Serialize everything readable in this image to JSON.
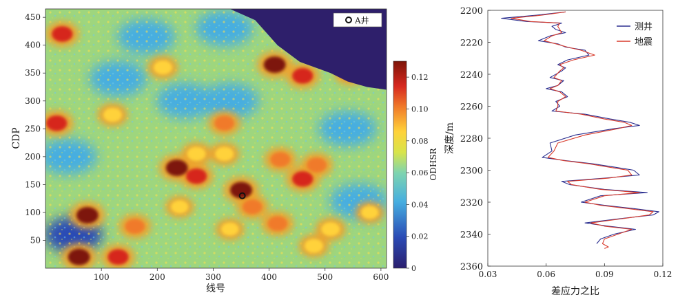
{
  "chart_data": [
    {
      "type": "heatmap",
      "title": "",
      "xlabel": "线号",
      "ylabel": "CDP",
      "xlim": [
        0,
        610
      ],
      "ylim": [
        0,
        465
      ],
      "xticks": [
        "100",
        "200",
        "300",
        "400",
        "500",
        "600"
      ],
      "yticks": [
        "50",
        "100",
        "150",
        "200",
        "250",
        "300",
        "350",
        "400",
        "450"
      ],
      "colorbar": {
        "label": "ODHSR",
        "range": [
          0,
          0.13
        ],
        "ticks": [
          "0",
          "0.02",
          "0.04",
          "0.06",
          "0.08",
          "0.10",
          "0.12"
        ]
      },
      "legend": {
        "label": "A井",
        "position": "top-right"
      },
      "well_marker": {
        "name": "A井",
        "x": 352,
        "y": 130
      },
      "nodata_region": [
        [
          330,
          465
        ],
        [
          375,
          445
        ],
        [
          415,
          400
        ],
        [
          455,
          370
        ],
        [
          510,
          350
        ],
        [
          540,
          335
        ],
        [
          575,
          325
        ],
        [
          610,
          320
        ],
        [
          610,
          465
        ]
      ],
      "anomalies": [
        {
          "x": 235,
          "y": 180,
          "value": 0.13
        },
        {
          "x": 270,
          "y": 165,
          "value": 0.12
        },
        {
          "x": 350,
          "y": 140,
          "value": 0.13
        },
        {
          "x": 370,
          "y": 110,
          "value": 0.11
        },
        {
          "x": 460,
          "y": 160,
          "value": 0.12
        },
        {
          "x": 485,
          "y": 185,
          "value": 0.11
        },
        {
          "x": 75,
          "y": 95,
          "value": 0.13
        },
        {
          "x": 60,
          "y": 20,
          "value": 0.13
        },
        {
          "x": 130,
          "y": 20,
          "value": 0.12
        },
        {
          "x": 30,
          "y": 420,
          "value": 0.12
        },
        {
          "x": 20,
          "y": 260,
          "value": 0.12
        },
        {
          "x": 410,
          "y": 365,
          "value": 0.13
        },
        {
          "x": 460,
          "y": 345,
          "value": 0.12
        },
        {
          "x": 320,
          "y": 260,
          "value": 0.11
        },
        {
          "x": 420,
          "y": 195,
          "value": 0.11
        },
        {
          "x": 160,
          "y": 75,
          "value": 0.11
        },
        {
          "x": 415,
          "y": 80,
          "value": 0.11
        },
        {
          "x": 510,
          "y": 70,
          "value": 0.1
        },
        {
          "x": 210,
          "y": 360,
          "value": 0.1
        },
        {
          "x": 120,
          "y": 275,
          "value": 0.1
        },
        {
          "x": 270,
          "y": 205,
          "value": 0.1
        },
        {
          "x": 320,
          "y": 205,
          "value": 0.1
        },
        {
          "x": 545,
          "y": 350,
          "value": 0.11
        },
        {
          "x": 580,
          "y": 100,
          "value": 0.09
        },
        {
          "x": 240,
          "y": 110,
          "value": 0.09
        },
        {
          "x": 480,
          "y": 40,
          "value": 0.1
        },
        {
          "x": 330,
          "y": 70,
          "value": 0.09
        }
      ],
      "low_zones": [
        {
          "x": 180,
          "y": 415,
          "value": 0.045
        },
        {
          "x": 320,
          "y": 430,
          "value": 0.05
        },
        {
          "x": 130,
          "y": 340,
          "value": 0.05
        },
        {
          "x": 40,
          "y": 200,
          "value": 0.05
        },
        {
          "x": 250,
          "y": 300,
          "value": 0.045
        },
        {
          "x": 560,
          "y": 120,
          "value": 0.05
        },
        {
          "x": 50,
          "y": 60,
          "value": 0.04
        },
        {
          "x": 330,
          "y": 300,
          "value": 0.05
        },
        {
          "x": 540,
          "y": 250,
          "value": 0.05
        }
      ]
    },
    {
      "type": "line",
      "title": "",
      "xlabel": "差应力之比",
      "ylabel": "深度/m",
      "xlim": [
        0.03,
        0.12
      ],
      "ylim": [
        2200,
        2360
      ],
      "y_inverted": true,
      "xticks": [
        "0.03",
        "0.06",
        "0.09",
        "0.12"
      ],
      "yticks": [
        "2200",
        "2220",
        "2240",
        "2260",
        "2280",
        "2300",
        "2320",
        "2340",
        "2360"
      ],
      "legend_position": "top-right",
      "series": [
        {
          "name": "测井",
          "color": "#2b2f8f",
          "points": [
            [
              0.07,
              2201
            ],
            [
              0.055,
              2203
            ],
            [
              0.037,
              2205
            ],
            [
              0.05,
              2207
            ],
            [
              0.068,
              2208
            ],
            [
              0.063,
              2210
            ],
            [
              0.065,
              2212
            ],
            [
              0.07,
              2214
            ],
            [
              0.062,
              2216
            ],
            [
              0.056,
              2219
            ],
            [
              0.066,
              2221
            ],
            [
              0.07,
              2223
            ],
            [
              0.08,
              2225
            ],
            [
              0.082,
              2228
            ],
            [
              0.071,
              2231
            ],
            [
              0.066,
              2234
            ],
            [
              0.07,
              2236
            ],
            [
              0.068,
              2238
            ],
            [
              0.062,
              2242
            ],
            [
              0.069,
              2244
            ],
            [
              0.066,
              2247
            ],
            [
              0.06,
              2249
            ],
            [
              0.068,
              2251
            ],
            [
              0.071,
              2254
            ],
            [
              0.065,
              2257
            ],
            [
              0.067,
              2260
            ],
            [
              0.063,
              2263
            ],
            [
              0.08,
              2265
            ],
            [
              0.093,
              2268
            ],
            [
              0.103,
              2270
            ],
            [
              0.108,
              2272
            ],
            [
              0.095,
              2274
            ],
            [
              0.075,
              2278
            ],
            [
              0.062,
              2283
            ],
            [
              0.063,
              2288
            ],
            [
              0.058,
              2292
            ],
            [
              0.07,
              2294
            ],
            [
              0.084,
              2296
            ],
            [
              0.095,
              2298
            ],
            [
              0.105,
              2300
            ],
            [
              0.108,
              2303
            ],
            [
              0.09,
              2305
            ],
            [
              0.068,
              2307
            ],
            [
              0.072,
              2309
            ],
            [
              0.09,
              2312
            ],
            [
              0.112,
              2314
            ],
            [
              0.088,
              2316
            ],
            [
              0.078,
              2320
            ],
            [
              0.09,
              2322
            ],
            [
              0.105,
              2324
            ],
            [
              0.118,
              2326
            ],
            [
              0.115,
              2328
            ],
            [
              0.1,
              2330
            ],
            [
              0.08,
              2333
            ],
            [
              0.092,
              2335
            ],
            [
              0.106,
              2337
            ],
            [
              0.095,
              2340
            ],
            [
              0.088,
              2343
            ],
            [
              0.086,
              2346
            ]
          ]
        },
        {
          "name": "地震",
          "color": "#d83a2b",
          "points": [
            [
              0.07,
              2201
            ],
            [
              0.058,
              2203
            ],
            [
              0.042,
              2205
            ],
            [
              0.052,
              2207
            ],
            [
              0.067,
              2208
            ],
            [
              0.066,
              2210
            ],
            [
              0.067,
              2212
            ],
            [
              0.068,
              2214
            ],
            [
              0.063,
              2216
            ],
            [
              0.059,
              2219
            ],
            [
              0.065,
              2221
            ],
            [
              0.071,
              2223
            ],
            [
              0.078,
              2225
            ],
            [
              0.085,
              2228
            ],
            [
              0.074,
              2231
            ],
            [
              0.067,
              2234
            ],
            [
              0.069,
              2236
            ],
            [
              0.067,
              2238
            ],
            [
              0.064,
              2242
            ],
            [
              0.068,
              2244
            ],
            [
              0.066,
              2247
            ],
            [
              0.062,
              2249
            ],
            [
              0.067,
              2251
            ],
            [
              0.07,
              2254
            ],
            [
              0.066,
              2257
            ],
            [
              0.066,
              2260
            ],
            [
              0.065,
              2263
            ],
            [
              0.078,
              2265
            ],
            [
              0.09,
              2268
            ],
            [
              0.1,
              2270
            ],
            [
              0.104,
              2272
            ],
            [
              0.097,
              2274
            ],
            [
              0.08,
              2278
            ],
            [
              0.066,
              2283
            ],
            [
              0.064,
              2288
            ],
            [
              0.061,
              2292
            ],
            [
              0.069,
              2294
            ],
            [
              0.082,
              2296
            ],
            [
              0.092,
              2298
            ],
            [
              0.102,
              2300
            ],
            [
              0.104,
              2303
            ],
            [
              0.092,
              2305
            ],
            [
              0.071,
              2307
            ],
            [
              0.073,
              2309
            ],
            [
              0.088,
              2312
            ],
            [
              0.108,
              2314
            ],
            [
              0.09,
              2316
            ],
            [
              0.08,
              2320
            ],
            [
              0.088,
              2322
            ],
            [
              0.102,
              2324
            ],
            [
              0.115,
              2326
            ],
            [
              0.113,
              2328
            ],
            [
              0.101,
              2330
            ],
            [
              0.083,
              2333
            ],
            [
              0.09,
              2335
            ],
            [
              0.104,
              2337
            ],
            [
              0.097,
              2340
            ],
            [
              0.09,
              2343
            ],
            [
              0.089,
              2346
            ],
            [
              0.092,
              2348
            ],
            [
              0.09,
              2349
            ]
          ]
        }
      ]
    }
  ]
}
